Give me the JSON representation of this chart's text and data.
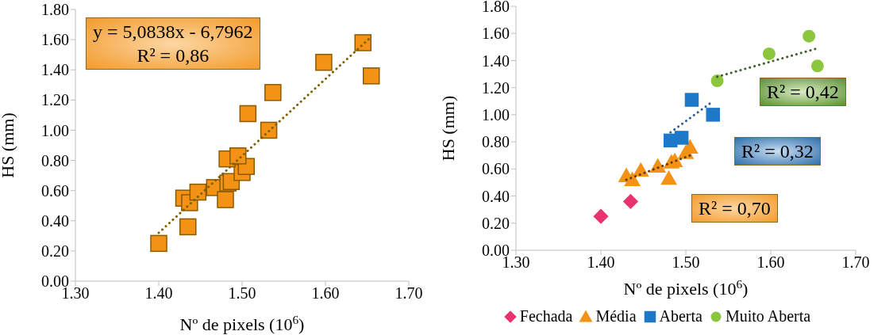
{
  "chart_data": [
    {
      "type": "scatter",
      "xlabel": "Nº de pixels (10$^{6}$)",
      "ylabel": "HS (mm)",
      "xlim": [
        1.3,
        1.7
      ],
      "ylim": [
        0,
        1.8
      ],
      "xticks": [
        {
          "value": 1.3,
          "label": "1.30"
        },
        {
          "value": 1.4,
          "label": "1.40"
        },
        {
          "value": 1.5,
          "label": "1.50"
        },
        {
          "value": 1.6,
          "label": "1.60"
        },
        {
          "value": 1.7,
          "label": "1.70"
        }
      ],
      "yticks": [
        {
          "value": 0,
          "label": "0.00"
        },
        {
          "value": 0.2,
          "label": "0.20"
        },
        {
          "value": 0.4,
          "label": "0.40"
        },
        {
          "value": 0.6,
          "label": "0.60"
        },
        {
          "value": 0.8,
          "label": "0.80"
        },
        {
          "value": 1,
          "label": "1.00"
        },
        {
          "value": 1.2,
          "label": "1.20"
        },
        {
          "value": 1.4,
          "label": "1.40"
        },
        {
          "value": 1.6,
          "label": "1.60"
        },
        {
          "value": 1.8,
          "label": "1.80"
        }
      ],
      "grid": false,
      "legend": false,
      "series": [
        {
          "color": "#f39214",
          "marker": "square",
          "x": [
            1.4,
            1.435,
            1.43,
            1.437,
            1.447,
            1.467,
            1.48,
            1.483,
            1.487,
            1.5,
            1.505,
            1.482,
            1.495,
            1.507,
            1.532,
            1.537,
            1.598,
            1.645,
            1.655
          ],
          "values": [
            0.25,
            0.36,
            0.55,
            0.52,
            0.59,
            0.62,
            0.54,
            0.65,
            0.66,
            0.72,
            0.76,
            0.81,
            0.83,
            1.11,
            1.0,
            1.25,
            1.45,
            1.58,
            1.36
          ]
        },
        {
          "type": "line",
          "color": "#7f6000",
          "line_style": "dotted",
          "x": [
            1.4,
            1.655
          ],
          "values": [
            0.32,
            1.62
          ]
        }
      ],
      "annotations": [
        "y = 5,0838x - 6,7962\nR² = 0,86"
      ]
    },
    {
      "type": "scatter",
      "xlabel": "Nº de pixels (10$^{6}$)",
      "ylabel": "HS (mm)",
      "xlim": [
        1.3,
        1.7
      ],
      "ylim": [
        0,
        1.8
      ],
      "xticks": [
        {
          "value": 1.3,
          "label": "1.30"
        },
        {
          "value": 1.4,
          "label": "1.40"
        },
        {
          "value": 1.5,
          "label": "1.50"
        },
        {
          "value": 1.6,
          "label": "1.60"
        },
        {
          "value": 1.7,
          "label": "1.70"
        }
      ],
      "yticks": [
        {
          "value": 0,
          "label": "0.00"
        },
        {
          "value": 0.2,
          "label": "0.20"
        },
        {
          "value": 0.4,
          "label": "0.40"
        },
        {
          "value": 0.6,
          "label": "0.60"
        },
        {
          "value": 0.8,
          "label": "0.80"
        },
        {
          "value": 1,
          "label": "1.00"
        },
        {
          "value": 1.2,
          "label": "1.20"
        },
        {
          "value": 1.4,
          "label": "1.40"
        },
        {
          "value": 1.6,
          "label": "1.60"
        },
        {
          "value": 1.8,
          "label": "1.80"
        }
      ],
      "grid": false,
      "legend": "bottom",
      "series": [
        {
          "name": "Fechada",
          "color": "#e8336d",
          "marker": "diamond",
          "x": [
            1.4,
            1.435
          ],
          "values": [
            0.25,
            0.36
          ]
        },
        {
          "name": "Média",
          "color": "#f39214",
          "marker": "triangle",
          "x": [
            1.43,
            1.437,
            1.447,
            1.467,
            1.48,
            1.483,
            1.487,
            1.5,
            1.505
          ],
          "values": [
            0.55,
            0.52,
            0.59,
            0.62,
            0.53,
            0.65,
            0.66,
            0.72,
            0.76
          ]
        },
        {
          "name": "Aberta",
          "color": "#1e78c8",
          "marker": "square",
          "x": [
            1.482,
            1.495,
            1.507,
            1.532
          ],
          "values": [
            0.81,
            0.83,
            1.11,
            1.0
          ]
        },
        {
          "name": "Muito Aberta",
          "color": "#8cc63f",
          "marker": "circle",
          "x": [
            1.537,
            1.598,
            1.645,
            1.655
          ],
          "values": [
            1.25,
            1.45,
            1.58,
            1.36
          ]
        },
        {
          "type": "line",
          "color": "#5a3a1a",
          "line_style": "dotted",
          "x": [
            1.43,
            1.505
          ],
          "values": [
            0.52,
            0.7
          ]
        },
        {
          "type": "line",
          "color": "#2e5f8a",
          "line_style": "dotted",
          "x": [
            1.482,
            1.532
          ],
          "values": [
            0.87,
            1.1
          ]
        },
        {
          "type": "line",
          "color": "#3e5e2a",
          "line_style": "dotted",
          "x": [
            1.537,
            1.655
          ],
          "values": [
            1.28,
            1.49
          ]
        }
      ],
      "annotations": [
        "R² = 0,42",
        "R² = 0,32",
        "R² = 0,70"
      ]
    }
  ]
}
